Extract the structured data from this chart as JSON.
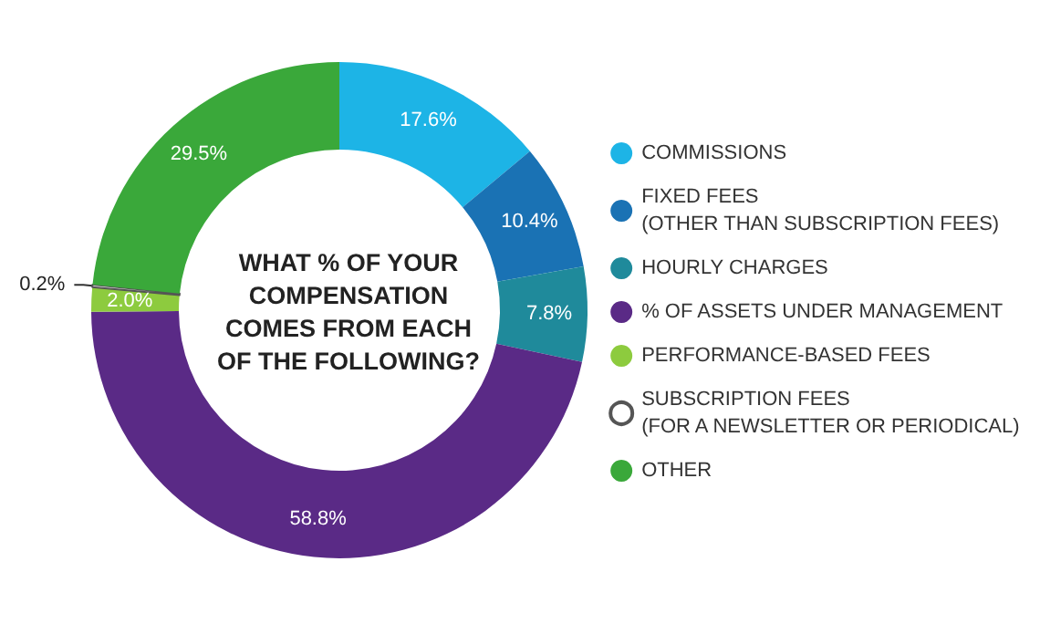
{
  "chart_data": {
    "type": "donut",
    "title": "WHAT % OF YOUR\nCOMPENSATION\nCOMES FROM EACH\nOF THE FOLLOWING?",
    "categories": [
      "COMMISSIONS",
      "FIXED FEES\n(OTHER THAN SUBSCRIPTION FEES)",
      "HOURLY CHARGES",
      "% OF ASSETS UNDER MANAGEMENT",
      "PERFORMANCE-BASED FEES",
      "SUBSCRIPTION FEES\n(FOR A NEWSLETTER OR PERIODICAL)",
      "OTHER"
    ],
    "values": [
      17.6,
      10.4,
      7.8,
      58.8,
      2.0,
      0.2,
      29.5
    ],
    "colors": [
      "#1db4e6",
      "#1a72b4",
      "#1f8a9b",
      "#5a2a86",
      "#8dcb3e",
      "#ffffff",
      "#3aa83a"
    ],
    "value_labels": [
      "17.6%",
      "10.4%",
      "7.8%",
      "58.8%",
      "2.0%",
      "0.2%",
      "29.5%"
    ],
    "legend": "right"
  }
}
